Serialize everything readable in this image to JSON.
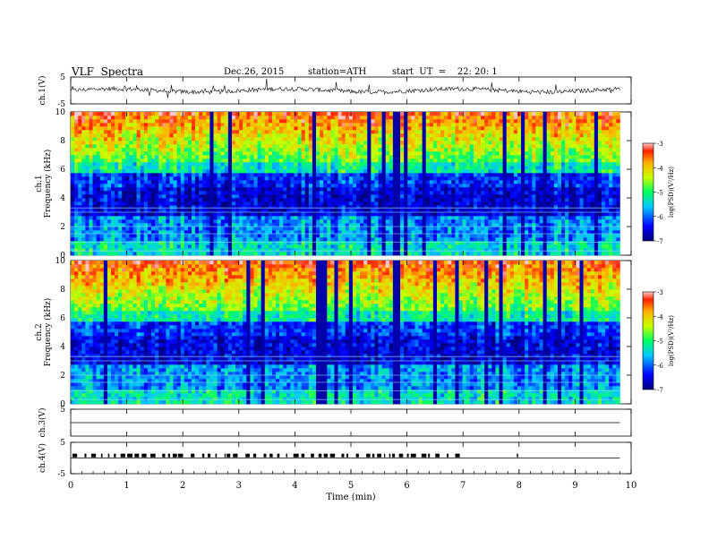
{
  "header": {
    "title": "VLF  Spectra",
    "date": "Dec.26, 2015",
    "station": "station=ATH",
    "start": "start  UT  =    22: 20: 1"
  },
  "chart_data": [
    {
      "type": "line",
      "panel": "ch1-waveform",
      "ylabel": "ch.1(V)",
      "ylim": [
        -5,
        5
      ],
      "yticks": [
        "5",
        "-5"
      ],
      "baseline": 0
    },
    {
      "type": "heatmap",
      "panel": "ch1-spectrogram",
      "ylabel": "ch.1\nFrequency  (kHz)",
      "ylim": [
        0,
        10
      ],
      "yticks": [
        "0",
        "2",
        "4",
        "6",
        "8",
        "10"
      ],
      "colorbar": {
        "label": "log(PSD)(V²/Hz)",
        "range": [
          -7,
          -3
        ],
        "ticks": [
          "-3",
          "-4",
          "-5",
          "-6",
          "-7"
        ]
      }
    },
    {
      "type": "heatmap",
      "panel": "ch2-spectrogram",
      "ylabel": "ch.2\nFrequency  (kHz)",
      "ylim": [
        0,
        10
      ],
      "yticks": [
        "0",
        "2",
        "4",
        "6",
        "8",
        "10"
      ],
      "colorbar": {
        "label": "log(PSD)(V²/Hz)",
        "range": [
          -7,
          -3
        ],
        "ticks": [
          "-3",
          "-4",
          "-5",
          "-6",
          "-7"
        ]
      }
    },
    {
      "type": "line",
      "panel": "ch3-waveform",
      "ylabel": "ch.3(V)",
      "ylim": [
        -5,
        5
      ],
      "yticks": [
        "5"
      ],
      "baseline": 0
    },
    {
      "type": "line",
      "panel": "ch4-waveform",
      "ylabel": "ch.4(V)",
      "ylim": [
        -5,
        5
      ],
      "yticks": [
        "5",
        "-5"
      ],
      "baseline": 0
    }
  ],
  "xaxis": {
    "label": "Time  (min)",
    "xlim": [
      0,
      10
    ],
    "ticks": [
      "0",
      "1",
      "2",
      "3",
      "4",
      "5",
      "6",
      "7",
      "8",
      "9",
      "10"
    ],
    "data_end": 9.8
  }
}
